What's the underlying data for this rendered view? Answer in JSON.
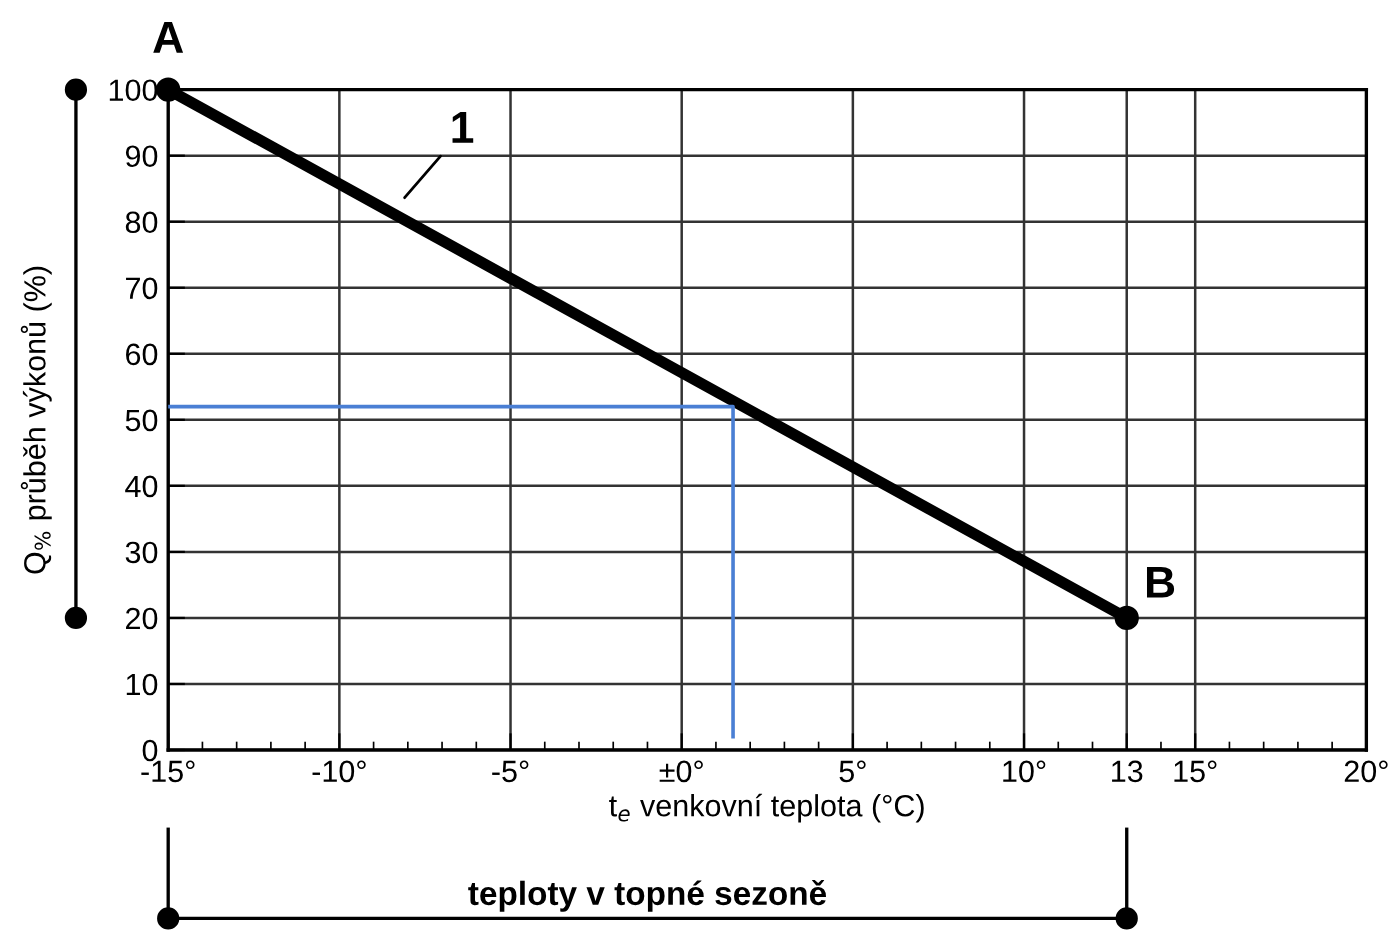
{
  "chart_data": {
    "type": "line",
    "xlabel": "t$_{e}$ venkovní teplota (°C)",
    "ylabel": "Q$_{%}$ průběh výkonů (%)",
    "series": [
      {
        "color": "#000000",
        "x": [
          -15,
          13
        ],
        "values": [
          100,
          20
        ]
      },
      {
        "type": "scatter",
        "color": "#000000",
        "x": [
          -15,
          13
        ],
        "values": [
          100,
          20
        ]
      },
      {
        "color": "#4a7fd4",
        "x": [
          -15,
          1.5,
          1.5
        ],
        "values": [
          52,
          52,
          2
        ]
      }
    ],
    "annotations": [
      {
        "text": "A",
        "x": -15,
        "y": 100
      },
      {
        "text": "B",
        "x": 13,
        "y": 20
      },
      {
        "text": "1",
        "x": -8.2,
        "y": 83
      },
      "teploty v topné sezoně"
    ],
    "xlim": [
      -15,
      20
    ],
    "ylim": [
      0,
      100
    ],
    "xticks": [
      {
        "value": -15,
        "label": "-15°"
      },
      {
        "value": -10,
        "label": "-10°"
      },
      {
        "value": -5,
        "label": "-5°"
      },
      {
        "value": 0,
        "label": "±0°"
      },
      {
        "value": 5,
        "label": "5°"
      },
      {
        "value": 10,
        "label": "10°"
      },
      13,
      {
        "value": 15,
        "label": "15°"
      },
      {
        "value": 20,
        "label": "20°"
      }
    ],
    "yticks": [
      0,
      10,
      20,
      30,
      40,
      50,
      60,
      70,
      80,
      90,
      100
    ],
    "grid": true,
    "line_style": "solid"
  }
}
